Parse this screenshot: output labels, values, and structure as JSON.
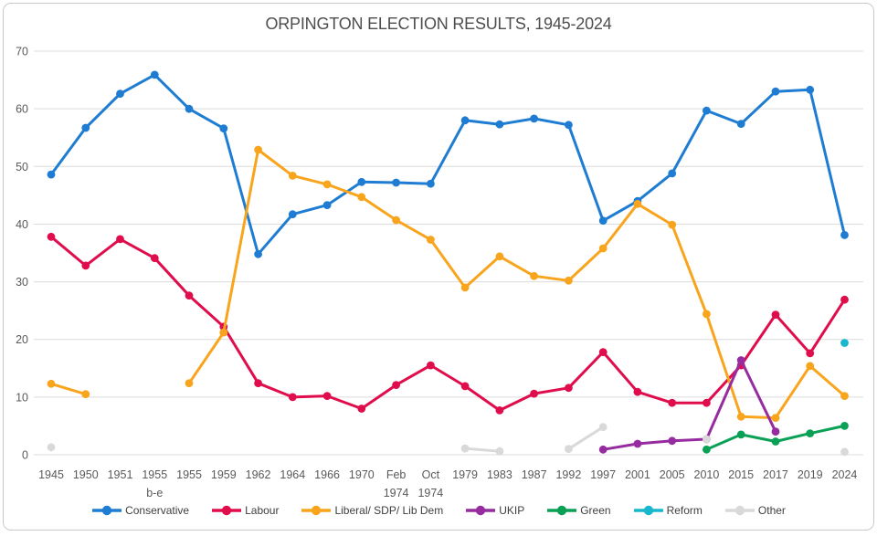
{
  "chart_data": {
    "type": "line",
    "title": "ORPINGTON ELECTION RESULTS, 1945-2024",
    "categories": [
      "1945",
      "1950",
      "1951",
      "1955\nb-e",
      "1955",
      "1959",
      "1962",
      "1964",
      "1966",
      "1970",
      "Feb\n1974",
      "Oct\n1974",
      "1979",
      "1983",
      "1987",
      "1992",
      "1997",
      "2001",
      "2005",
      "2010",
      "2015",
      "2017",
      "2019",
      "2024"
    ],
    "xlabel": "",
    "ylabel": "",
    "y_axis": {
      "min": 0,
      "max": 70,
      "tick_step": 10,
      "ticks": [
        0,
        10,
        20,
        30,
        40,
        50,
        60,
        70
      ]
    },
    "grid": true,
    "legend_position": "bottom",
    "colors": {
      "grid_line": "#dcdcdc",
      "axis_text": "#595959",
      "title_text": "#4d4d4d",
      "frame_border": "#c9c9c9"
    },
    "series": [
      {
        "name": "Conservative",
        "color": "#1e7dd2",
        "values": [
          48.6,
          56.7,
          62.6,
          65.9,
          60.0,
          56.6,
          34.8,
          41.7,
          43.3,
          47.3,
          47.2,
          47.0,
          58.0,
          57.3,
          58.3,
          57.2,
          40.6,
          44.0,
          48.8,
          59.7,
          57.4,
          63.0,
          63.3,
          38.1
        ]
      },
      {
        "name": "Labour",
        "color": "#e00d4d",
        "values": [
          37.8,
          32.8,
          37.4,
          34.1,
          27.6,
          22.2,
          12.4,
          10.0,
          10.2,
          8.0,
          12.1,
          15.5,
          11.9,
          7.7,
          10.6,
          11.6,
          17.8,
          10.9,
          9.0,
          9.0,
          15.5,
          24.3,
          17.6,
          26.9
        ]
      },
      {
        "name": "Liberal/ SDP/ Lib Dem",
        "color": "#f8a51d",
        "values": [
          12.3,
          10.5,
          null,
          null,
          12.4,
          21.2,
          52.9,
          48.4,
          46.9,
          44.7,
          40.7,
          37.3,
          29.0,
          34.4,
          31.0,
          30.2,
          35.8,
          43.5,
          39.9,
          24.4,
          6.6,
          6.4,
          15.4,
          10.2
        ]
      },
      {
        "name": "UKIP",
        "color": "#962ca0",
        "values": [
          null,
          null,
          null,
          null,
          null,
          null,
          null,
          null,
          null,
          null,
          null,
          null,
          null,
          null,
          null,
          null,
          0.9,
          1.9,
          2.4,
          2.7,
          16.4,
          4.0,
          null,
          null
        ]
      },
      {
        "name": "Green",
        "color": "#0aa157",
        "values": [
          null,
          null,
          null,
          null,
          null,
          null,
          null,
          null,
          null,
          null,
          null,
          null,
          null,
          null,
          null,
          null,
          null,
          null,
          null,
          0.9,
          3.5,
          2.3,
          3.7,
          5.0
        ]
      },
      {
        "name": "Reform",
        "color": "#18b7ce",
        "values": [
          null,
          null,
          null,
          null,
          null,
          null,
          null,
          null,
          null,
          null,
          null,
          null,
          null,
          null,
          null,
          null,
          null,
          null,
          null,
          null,
          null,
          null,
          null,
          19.4
        ]
      },
      {
        "name": "Other",
        "color": "#d9d9d9",
        "values": [
          1.3,
          null,
          null,
          null,
          null,
          null,
          null,
          null,
          null,
          null,
          null,
          null,
          1.1,
          0.6,
          null,
          1.0,
          4.8,
          null,
          null,
          2.7,
          null,
          null,
          null,
          0.5
        ]
      }
    ]
  }
}
